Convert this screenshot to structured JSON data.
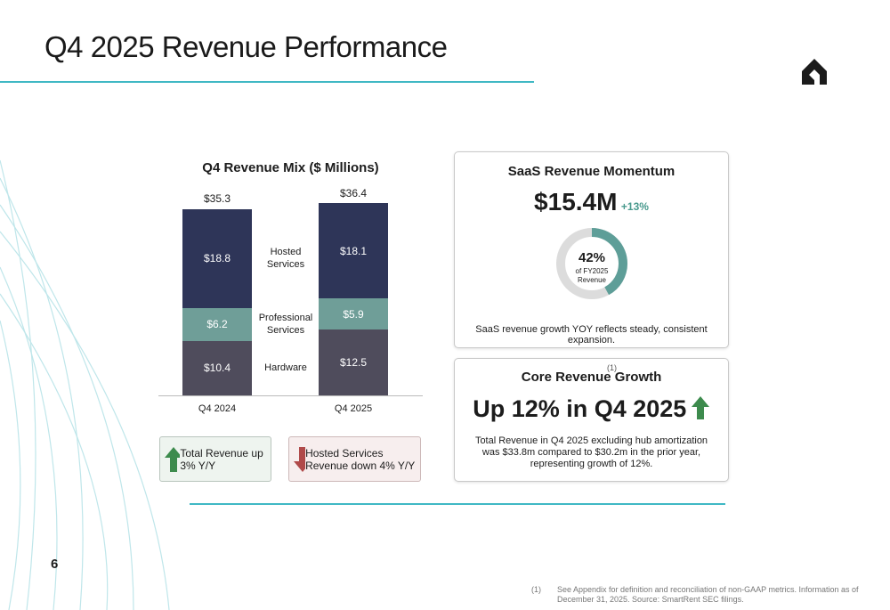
{
  "header": {
    "title": "Q4 2025 Revenue Performance"
  },
  "chart_data": {
    "type": "bar",
    "stacked": true,
    "title": "Q4 Revenue Mix ($ Millions)",
    "categories": [
      "Q4 2024",
      "Q4 2025"
    ],
    "series": [
      {
        "name": "Hardware",
        "color": "#4f4c5c",
        "values": [
          10.4,
          12.5
        ],
        "value_labels": [
          "$10.4",
          "$12.5"
        ]
      },
      {
        "name": "Professional Services",
        "color": "#6f9e98",
        "values": [
          6.2,
          5.9
        ],
        "value_labels": [
          "$6.2",
          "$5.9"
        ]
      },
      {
        "name": "Hosted Services",
        "color": "#2e3558",
        "values": [
          18.8,
          18.1
        ],
        "value_labels": [
          "$18.8",
          "$18.1"
        ]
      }
    ],
    "totals": [
      35.3,
      36.4
    ],
    "total_labels": [
      "$35.3",
      "$36.4"
    ]
  },
  "callouts": [
    {
      "text": "Total Revenue up 3% Y/Y"
    },
    {
      "text": "Hosted Services Revenue down 4% Y/Y"
    }
  ],
  "saas": {
    "title": "SaaS Revenue Momentum",
    "value": "$15.4M",
    "change": "+13%",
    "donut": {
      "value": 42,
      "label": "42%",
      "caption": "of FY2025 Revenue"
    },
    "note": "SaaS revenue growth YOY reflects steady, consistent expansion."
  },
  "core": {
    "title": "Core Revenue Growth",
    "marker": "(1)",
    "headline": "Up 12% in Q4 2025",
    "body": "Total Revenue in Q4 2025 excluding hub amortization was $33.8m compared to $30.2m in the prior year, representing growth of 12%."
  },
  "page_number": "6",
  "footnote": {
    "marker": "(1)",
    "text": "See Appendix for definition and reconciliation of non-GAAP metrics.  Information as of December 31, 2025. Source: SmartRent SEC filings."
  }
}
